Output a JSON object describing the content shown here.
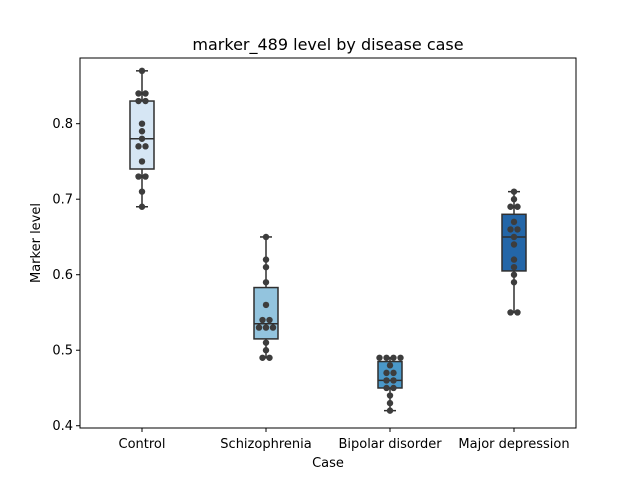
{
  "chart_data": {
    "type": "box",
    "title": "marker_489 level by disease case",
    "xlabel": "Case",
    "ylabel": "Marker level",
    "ylim": [
      0.4,
      0.88
    ],
    "yticks": [
      0.4,
      0.5,
      0.6,
      0.7,
      0.8
    ],
    "ytick_labels": [
      "0.4",
      "0.5",
      "0.6",
      "0.7",
      "0.8"
    ],
    "grid": false,
    "categories": [
      "Control",
      "Schizophrenia",
      "Bipolar disorder",
      "Major depression"
    ],
    "box_colors": [
      "#d6e6f4",
      "#93c4de",
      "#4a98c9",
      "#2366a8"
    ],
    "point_color": "#3d3d3d",
    "line_color": "#2f2f2f",
    "boxes": [
      {
        "category": "Control",
        "whisker_low": 0.69,
        "q1": 0.74,
        "median": 0.78,
        "q3": 0.83,
        "whisker_high": 0.87,
        "points": [
          0.87,
          0.84,
          0.84,
          0.83,
          0.83,
          0.8,
          0.79,
          0.78,
          0.77,
          0.77,
          0.75,
          0.73,
          0.73,
          0.71,
          0.69
        ]
      },
      {
        "category": "Schizophrenia",
        "whisker_low": 0.49,
        "q1": 0.515,
        "median": 0.535,
        "q3": 0.583,
        "whisker_high": 0.65,
        "points": [
          0.65,
          0.62,
          0.61,
          0.59,
          0.56,
          0.54,
          0.54,
          0.53,
          0.53,
          0.53,
          0.51,
          0.5,
          0.49,
          0.49
        ]
      },
      {
        "category": "Bipolar disorder",
        "whisker_low": 0.42,
        "q1": 0.45,
        "median": 0.46,
        "q3": 0.485,
        "whisker_high": 0.49,
        "points": [
          0.49,
          0.49,
          0.49,
          0.49,
          0.48,
          0.47,
          0.47,
          0.46,
          0.46,
          0.45,
          0.45,
          0.44,
          0.43,
          0.42
        ]
      },
      {
        "category": "Major depression",
        "whisker_low": 0.55,
        "q1": 0.605,
        "median": 0.65,
        "q3": 0.68,
        "whisker_high": 0.71,
        "points": [
          0.71,
          0.7,
          0.69,
          0.69,
          0.67,
          0.66,
          0.66,
          0.65,
          0.64,
          0.62,
          0.61,
          0.6,
          0.59,
          0.55,
          0.55
        ]
      }
    ]
  }
}
